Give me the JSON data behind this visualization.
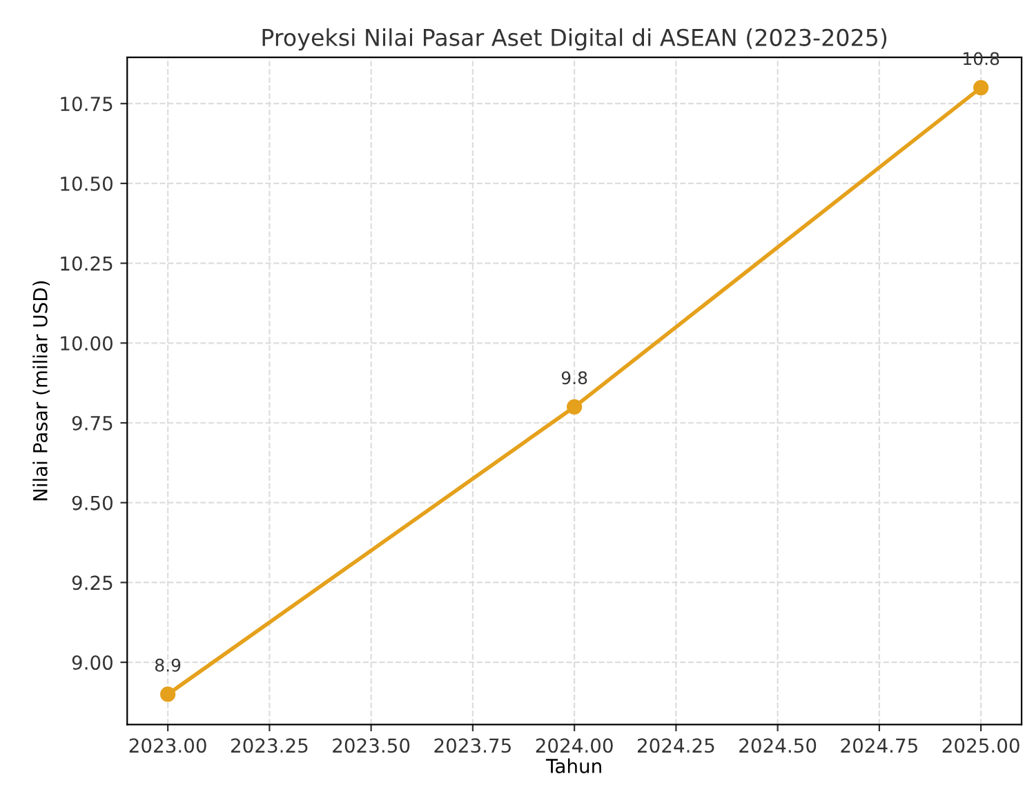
{
  "chart_data": {
    "type": "line",
    "title": "Proyeksi Nilai Pasar Aset Digital di ASEAN (2023-2025)",
    "xlabel": "Tahun",
    "ylabel": "Nilai Pasar (miliar USD)",
    "x": [
      2023,
      2024,
      2025
    ],
    "series": [
      {
        "color": "#e5a11c",
        "values": [
          8.9,
          9.8,
          10.8
        ]
      }
    ],
    "xlim": [
      2022.9,
      2025.1
    ],
    "ylim": [
      8.805,
      10.895
    ],
    "xticks": [
      {
        "value": 2023,
        "label": "2023.00"
      },
      {
        "value": 2023.25,
        "label": "2023.25"
      },
      {
        "value": 2023.5,
        "label": "2023.50"
      },
      {
        "value": 2023.75,
        "label": "2023.75"
      },
      {
        "value": 2024,
        "label": "2024.00"
      },
      {
        "value": 2024.25,
        "label": "2024.25"
      },
      {
        "value": 2024.5,
        "label": "2024.50"
      },
      {
        "value": 2024.75,
        "label": "2024.75"
      },
      {
        "value": 2025,
        "label": "2025.00"
      }
    ],
    "yticks": [
      {
        "value": 9,
        "label": "9.00"
      },
      {
        "value": 9.25,
        "label": "9.25"
      },
      {
        "value": 9.5,
        "label": "9.50"
      },
      {
        "value": 9.75,
        "label": "9.75"
      },
      {
        "value": 10,
        "label": "10.00"
      },
      {
        "value": 10.25,
        "label": "10.25"
      },
      {
        "value": 10.5,
        "label": "10.50"
      },
      {
        "value": 10.75,
        "label": "10.75"
      }
    ],
    "grid": true,
    "marker": "circle",
    "line_style": "solid",
    "data_labels": true
  }
}
